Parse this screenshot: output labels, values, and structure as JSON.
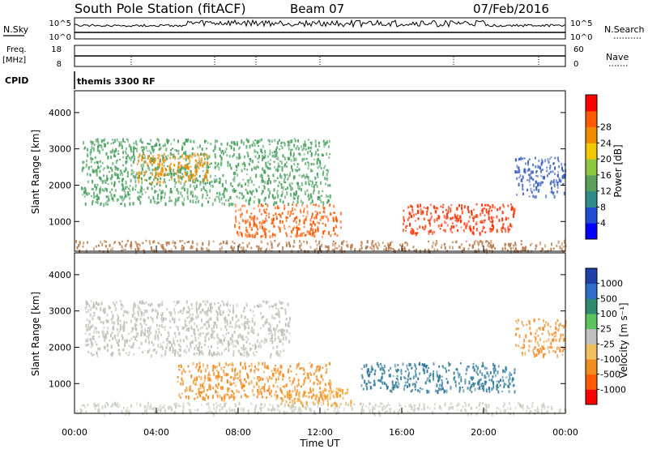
{
  "header": {
    "station": "South Pole Station (fitACF)",
    "beam": "Beam 07",
    "date": "07/Feb/2016"
  },
  "top_panels": {
    "nsky_label": "N.Sky",
    "nsearch_label": "N.Search",
    "noise_ticks_left": [
      "10^5",
      "10^0"
    ],
    "noise_ticks_right": [
      "10^5",
      "10^0"
    ],
    "freq_label_1": "Freq.",
    "freq_label_2": "[MHz]",
    "freq_ticks": [
      "18",
      "8"
    ],
    "nave_label": "Nave",
    "nave_ticks": [
      "60",
      "0"
    ],
    "cpid_label": "CPID",
    "cpid_value": "themis 3300 RF"
  },
  "chart_data": [
    {
      "type": "heatmap",
      "name": "power-panel",
      "xlabel": "",
      "ylabel": "Slant Range [km]",
      "x_ticks": [
        "00:00",
        "04:00",
        "08:00",
        "12:00",
        "16:00",
        "20:00",
        "00:00"
      ],
      "xlim_hours": [
        0,
        24
      ],
      "ylim": [
        180,
        4600
      ],
      "y_ticks": [
        1000,
        2000,
        3000,
        4000
      ],
      "colorbar": {
        "label": "Power [dB]",
        "ticks": [
          "4",
          "8",
          "12",
          "16",
          "20",
          "24",
          "28"
        ],
        "colors": [
          "#0000ff",
          "#1f4fd0",
          "#2f8a8a",
          "#5aa05a",
          "#8cc840",
          "#f0c800",
          "#f08c00",
          "#ff5a00",
          "#ff0000"
        ]
      },
      "echo_regions": [
        {
          "t": [
            0.3,
            12.5
          ],
          "r": [
            1500,
            3300
          ],
          "level": "medium",
          "color": "#4aa060"
        },
        {
          "t": [
            3.0,
            6.5
          ],
          "r": [
            2100,
            2900
          ],
          "level": "high",
          "color": "#f08c00"
        },
        {
          "t": [
            7.8,
            13.0
          ],
          "r": [
            600,
            1500
          ],
          "level": "high",
          "color": "#ff5a00"
        },
        {
          "t": [
            16.0,
            21.5
          ],
          "r": [
            700,
            1500
          ],
          "level": "high",
          "color": "#ff3000"
        },
        {
          "t": [
            21.5,
            24.0
          ],
          "r": [
            1700,
            2800
          ],
          "level": "low",
          "color": "#3a60c0"
        },
        {
          "t": [
            0.0,
            24.0
          ],
          "r": [
            200,
            500
          ],
          "level": "mixed",
          "color": "#b87a4a"
        }
      ]
    },
    {
      "type": "heatmap",
      "name": "velocity-panel",
      "xlabel": "Time UT",
      "ylabel": "Slant Range [km]",
      "x_ticks": [
        "00:00",
        "04:00",
        "08:00",
        "12:00",
        "16:00",
        "20:00",
        "00:00"
      ],
      "xlim_hours": [
        0,
        24
      ],
      "ylim": [
        180,
        4600
      ],
      "y_ticks": [
        1000,
        2000,
        3000,
        4000
      ],
      "colorbar": {
        "label": "Velocity [m s⁻¹]",
        "ticks": [
          "1000",
          "500",
          "100",
          "25",
          "-25",
          "-100",
          "-500",
          "-1000"
        ],
        "colors": [
          "#1e3fa8",
          "#2e6ec8",
          "#2f8a70",
          "#5cc45c",
          "#c0c0c0",
          "#f0c060",
          "#f08c20",
          "#ff5a00",
          "#ff0000"
        ]
      },
      "echo_regions": [
        {
          "t": [
            0.5,
            10.5
          ],
          "r": [
            1800,
            3300
          ],
          "level": "near zero",
          "color": "#c0c0b8"
        },
        {
          "t": [
            5.0,
            12.5
          ],
          "r": [
            600,
            1600
          ],
          "level": "-100 to -500",
          "color": "#f08c20"
        },
        {
          "t": [
            10.0,
            13.5
          ],
          "r": [
            400,
            900
          ],
          "level": "-100",
          "color": "#f0a030"
        },
        {
          "t": [
            14.0,
            21.5
          ],
          "r": [
            800,
            1600
          ],
          "level": "100 to 500",
          "color": "#2f7a9a"
        },
        {
          "t": [
            21.5,
            24.0
          ],
          "r": [
            1800,
            2800
          ],
          "level": "-100",
          "color": "#f09030"
        },
        {
          "t": [
            0.0,
            24.0
          ],
          "r": [
            200,
            500
          ],
          "level": "near zero",
          "color": "#c8d0c0"
        }
      ]
    }
  ]
}
